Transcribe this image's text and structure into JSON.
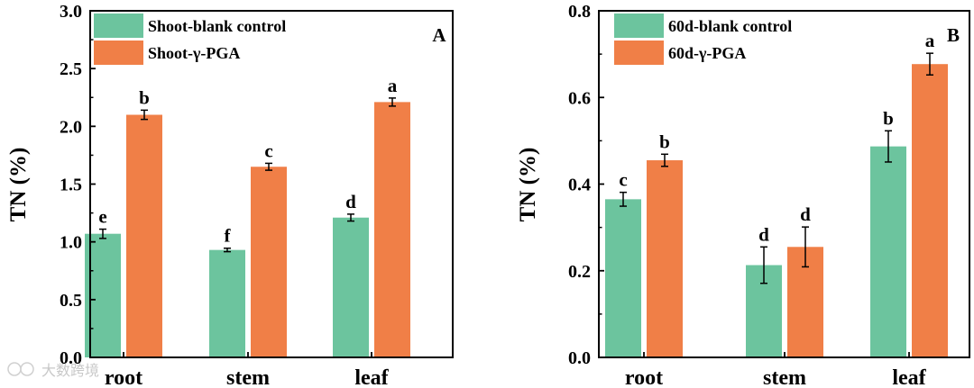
{
  "chart_data": [
    {
      "type": "bar",
      "panel_label": "A",
      "ylabel": "TN (%)",
      "categories": [
        "root",
        "stem",
        "leaf"
      ],
      "ylim": [
        0,
        3.0
      ],
      "yticks": [
        "0.0",
        "0.5",
        "1.0",
        "1.5",
        "2.0",
        "2.5",
        "3.0"
      ],
      "legend_position": "top-left",
      "series": [
        {
          "name": "Shoot-blank control",
          "color": "#6cc49e",
          "values": [
            1.07,
            0.93,
            1.21
          ],
          "errors": [
            0.04,
            0.015,
            0.03
          ],
          "letters": [
            "e",
            "f",
            "d"
          ]
        },
        {
          "name": "Shoot-γ-PGA",
          "color": "#f07f47",
          "values": [
            2.1,
            1.65,
            2.21
          ],
          "errors": [
            0.04,
            0.03,
            0.035
          ],
          "letters": [
            "b",
            "c",
            "a"
          ]
        }
      ]
    },
    {
      "type": "bar",
      "panel_label": "B",
      "ylabel": "TN (%)",
      "categories": [
        "root",
        "stem",
        "leaf"
      ],
      "ylim": [
        0,
        0.8
      ],
      "yticks": [
        "0.0",
        "0.2",
        "0.4",
        "0.6",
        "0.8"
      ],
      "legend_position": "top-left",
      "series": [
        {
          "name": "60d-blank control",
          "color": "#6cc49e",
          "values": [
            0.365,
            0.213,
            0.487
          ],
          "errors": [
            0.016,
            0.042,
            0.036
          ],
          "letters": [
            "c",
            "d",
            "b"
          ]
        },
        {
          "name": "60d-γ-PGA",
          "color": "#f07f47",
          "values": [
            0.455,
            0.255,
            0.677
          ],
          "errors": [
            0.014,
            0.046,
            0.025
          ],
          "letters": [
            "b",
            "d",
            "a"
          ]
        }
      ]
    }
  ],
  "watermark": "大数跨境"
}
